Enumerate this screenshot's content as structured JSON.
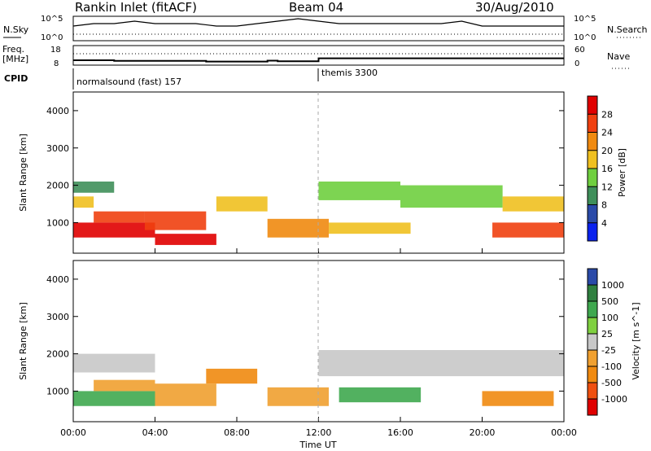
{
  "header": {
    "station": "Rankin Inlet (fitACF)",
    "beam": "Beam 04",
    "date": "30/Aug/2010"
  },
  "summary_panels": {
    "nsky_label": "N.Sky",
    "nsearch_label": "N.Search",
    "freq_label_1": "Freq.",
    "freq_label_2": "[MHz]",
    "nave_label": "Nave",
    "cpid_label": "CPID",
    "noise_ticks_top": "10^5",
    "noise_ticks_bottom": "10^0",
    "freq_ticks": [
      "18",
      "8"
    ],
    "nave_ticks": [
      "60",
      "0"
    ]
  },
  "cpid": {
    "modes": [
      {
        "name": "normalsound (fast) 157",
        "start_hour": 0
      },
      {
        "name": "themis 3300",
        "start_hour": 12
      }
    ]
  },
  "colors": {
    "power_scale": [
      "#0a22ee",
      "#2a4aa8",
      "#3f8f5a",
      "#6fcf3f",
      "#f0c020",
      "#f08a10",
      "#f04010",
      "#e00000"
    ],
    "velocity_scale": [
      "#2a4aa8",
      "#2f7f3f",
      "#3fa84f",
      "#7fd040",
      "#c8c8c8",
      "#f0a030",
      "#f08a10",
      "#f05010",
      "#e00000"
    ]
  },
  "chart_data": [
    {
      "type": "line",
      "panel": "noise",
      "title": "",
      "ylabel_left": "N.Sky",
      "ylabel_right": "N.Search",
      "y_scale": "log",
      "ylim": [
        "10^0",
        "10^5"
      ],
      "x_hours": [
        0,
        1,
        2,
        3,
        4,
        5,
        6,
        7,
        8,
        9,
        10,
        11,
        12,
        13,
        14,
        15,
        16,
        17,
        18,
        19,
        20,
        21,
        22,
        23,
        24
      ],
      "series": [
        {
          "values": [
            3,
            3.5,
            3.5,
            4,
            3.5,
            3.5,
            3.5,
            3,
            3,
            3.5,
            4,
            4.5,
            4,
            3.5,
            3.5,
            3.5,
            3.5,
            3.5,
            3.5,
            4,
            3,
            3,
            3,
            3,
            3
          ]
        }
      ]
    },
    {
      "type": "line",
      "panel": "frequency",
      "title": "",
      "ylabel_left": "Freq. [MHz]",
      "ylabel_right": "Nave",
      "ylim_left": [
        8,
        18
      ],
      "ylim_right": [
        0,
        60
      ],
      "x_hours": [
        0,
        2,
        4,
        6.5,
        8,
        9.5,
        10,
        12,
        24
      ],
      "series": [
        {
          "values": [
            10.5,
            10.2,
            10.2,
            9.8,
            9.8,
            10.3,
            10.0,
            11.5,
            11.5
          ]
        }
      ]
    },
    {
      "type": "heatmap",
      "panel": "power",
      "ylabel": "Slant Range [km]",
      "colorbar_label": "Power [dB]",
      "colorbar_ticks": [
        4,
        8,
        12,
        16,
        20,
        24,
        28
      ],
      "ylim": [
        180,
        4500
      ],
      "yticks": [
        1000,
        2000,
        3000,
        4000
      ],
      "xlim_hours": [
        0,
        24
      ],
      "bands": [
        {
          "t0": 0.0,
          "t1": 1.0,
          "r0": 1400,
          "r1": 1700,
          "value": 16
        },
        {
          "t0": 0.0,
          "t1": 2.0,
          "r0": 1800,
          "r1": 2100,
          "value": 8
        },
        {
          "t0": 0.0,
          "t1": 4.0,
          "r0": 600,
          "r1": 1000,
          "value": 28
        },
        {
          "t0": 1.0,
          "t1": 3.5,
          "r0": 1000,
          "r1": 1300,
          "value": 24
        },
        {
          "t0": 3.5,
          "t1": 6.5,
          "r0": 800,
          "r1": 1300,
          "value": 24
        },
        {
          "t0": 4.0,
          "t1": 7.0,
          "r0": 400,
          "r1": 700,
          "value": 28
        },
        {
          "t0": 7.0,
          "t1": 9.5,
          "r0": 1300,
          "r1": 1700,
          "value": 16
        },
        {
          "t0": 9.5,
          "t1": 12.5,
          "r0": 600,
          "r1": 1100,
          "value": 20
        },
        {
          "t0": 12.0,
          "t1": 16.0,
          "r0": 1600,
          "r1": 2100,
          "value": 12
        },
        {
          "t0": 12.5,
          "t1": 16.5,
          "r0": 700,
          "r1": 1000,
          "value": 16
        },
        {
          "t0": 16.0,
          "t1": 21.0,
          "r0": 1400,
          "r1": 2000,
          "value": 12
        },
        {
          "t0": 20.5,
          "t1": 24.0,
          "r0": 600,
          "r1": 1000,
          "value": 24
        },
        {
          "t0": 21.0,
          "t1": 24.0,
          "r0": 1300,
          "r1": 1700,
          "value": 16
        }
      ]
    },
    {
      "type": "heatmap",
      "panel": "velocity",
      "ylabel": "Slant Range [km]",
      "xlabel": "Time UT",
      "colorbar_label": "Velocity [m s^-1]",
      "colorbar_ticks": [
        1000,
        500,
        100,
        25,
        -25,
        -100,
        -500,
        -1000
      ],
      "ylim": [
        180,
        4500
      ],
      "yticks": [
        1000,
        2000,
        3000,
        4000
      ],
      "xlim_hours": [
        0,
        24
      ],
      "xticks": [
        "00:00",
        "04:00",
        "08:00",
        "12:00",
        "16:00",
        "20:00",
        "00:00"
      ],
      "bands": [
        {
          "t0": 0.0,
          "t1": 4.0,
          "r0": 1500,
          "r1": 2000,
          "value": 0
        },
        {
          "t0": 0.0,
          "t1": 4.0,
          "r0": 600,
          "r1": 1000,
          "value": 100
        },
        {
          "t0": 1.0,
          "t1": 4.0,
          "r0": 1000,
          "r1": 1300,
          "value": -100
        },
        {
          "t0": 4.0,
          "t1": 7.0,
          "r0": 600,
          "r1": 1200,
          "value": -100
        },
        {
          "t0": 6.5,
          "t1": 9.0,
          "r0": 1200,
          "r1": 1600,
          "value": -500
        },
        {
          "t0": 9.5,
          "t1": 12.5,
          "r0": 600,
          "r1": 1100,
          "value": -100
        },
        {
          "t0": 12.0,
          "t1": 24.0,
          "r0": 1400,
          "r1": 2100,
          "value": 0
        },
        {
          "t0": 13.0,
          "t1": 17.0,
          "r0": 700,
          "r1": 1100,
          "value": 100
        },
        {
          "t0": 20.0,
          "t1": 23.5,
          "r0": 600,
          "r1": 1000,
          "value": -500
        }
      ]
    }
  ]
}
